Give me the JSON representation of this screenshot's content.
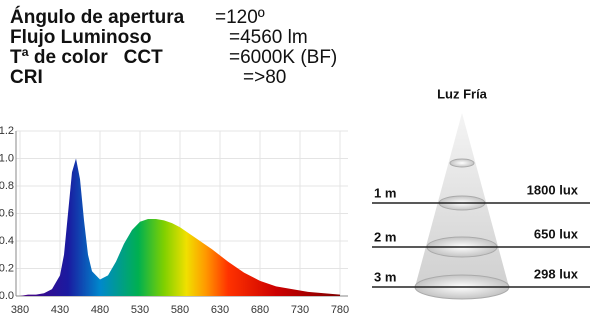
{
  "specs": [
    {
      "label": "Ángulo de apertura",
      "value": "=120º"
    },
    {
      "label": "Flujo Luminoso",
      "value": "=4560 lm"
    },
    {
      "label": "Tª de color   CCT",
      "value": "=6000K (BF)"
    },
    {
      "label": "CRI",
      "value": "=>80"
    }
  ],
  "chart_data": {
    "type": "area",
    "x": [
      380,
      390,
      400,
      410,
      420,
      430,
      435,
      440,
      445,
      450,
      455,
      460,
      465,
      470,
      480,
      490,
      500,
      510,
      520,
      530,
      540,
      550,
      560,
      570,
      580,
      590,
      600,
      620,
      640,
      660,
      680,
      700,
      720,
      740,
      760,
      780
    ],
    "values": [
      0,
      0.01,
      0.01,
      0.02,
      0.05,
      0.15,
      0.3,
      0.6,
      0.9,
      1.0,
      0.85,
      0.55,
      0.3,
      0.18,
      0.12,
      0.15,
      0.25,
      0.38,
      0.48,
      0.54,
      0.56,
      0.56,
      0.55,
      0.53,
      0.5,
      0.46,
      0.42,
      0.34,
      0.25,
      0.17,
      0.11,
      0.07,
      0.05,
      0.03,
      0.02,
      0.01
    ],
    "xlim": [
      375,
      790
    ],
    "xticks": [
      380,
      430,
      480,
      530,
      580,
      630,
      680,
      730,
      780
    ],
    "ylim": [
      0,
      1.2
    ],
    "yticks": [
      {
        "value": 0,
        "label": "0.0"
      },
      0.2,
      0.4,
      0.6,
      0.8,
      {
        "value": 1,
        "label": "1.0"
      },
      1.2
    ],
    "grid": true
  },
  "cone": {
    "title": "Luz Fría",
    "levels": [
      {
        "distance": "1 m",
        "lux": "1800 lux"
      },
      {
        "distance": "2 m",
        "lux": "650 lux"
      },
      {
        "distance": "3 m",
        "lux": "298 lux"
      }
    ]
  }
}
